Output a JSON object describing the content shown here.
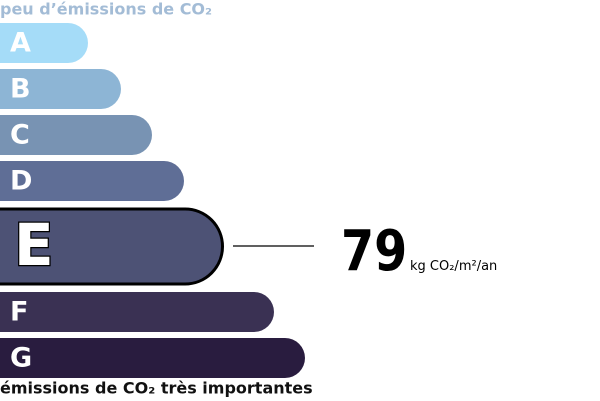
{
  "header": "peu d’émissions de CO₂",
  "classes": [
    "A",
    "B",
    "C",
    "D",
    "E",
    "F",
    "G"
  ],
  "value": "79",
  "unit": "kg CO₂/m²/an",
  "footer": "émissions de CO₂ très importantes"
}
